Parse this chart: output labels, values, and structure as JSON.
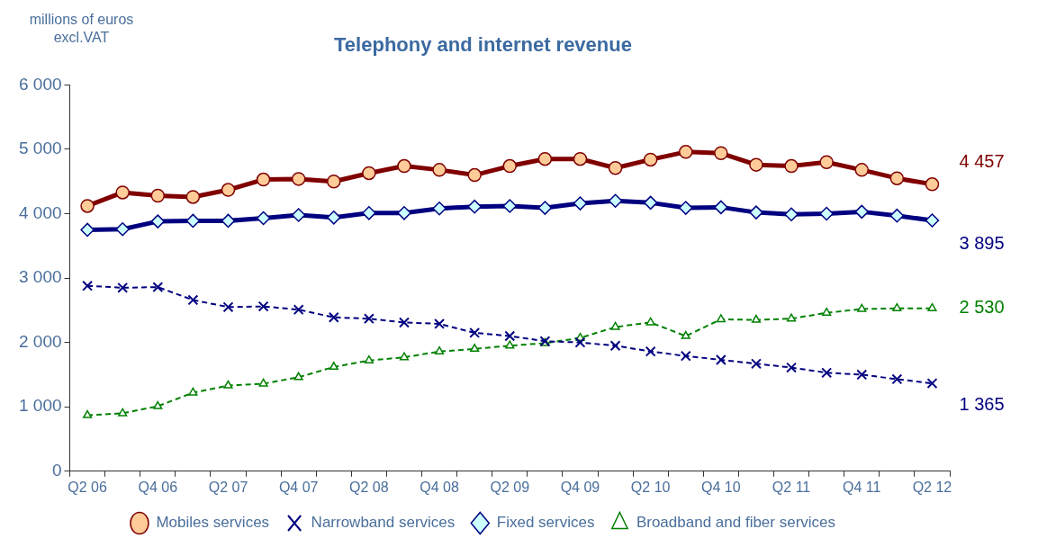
{
  "chart_data": {
    "type": "line",
    "title": "Telephony and internet revenue",
    "ylabel": "millions of euros excl.VAT",
    "categories": [
      "Q2 06",
      null,
      "Q4 06",
      null,
      "Q2 07",
      null,
      "Q4 07",
      null,
      "Q2 08",
      null,
      "Q4 08",
      null,
      "Q2 09",
      null,
      "Q4 09",
      null,
      "Q2 10",
      null,
      "Q4 10",
      null,
      "Q2 11",
      null,
      "Q4 11",
      null,
      "Q2 12"
    ],
    "series": [
      {
        "name": "Mobiles services",
        "color": "#800000",
        "marker": "circle",
        "line_style": "solid",
        "values": [
          4120,
          4330,
          4280,
          4260,
          4370,
          4530,
          4540,
          4500,
          4630,
          4740,
          4680,
          4600,
          4740,
          4850,
          4850,
          4710,
          4840,
          4960,
          4940,
          4760,
          4740,
          4800,
          4680,
          4550,
          4457
        ],
        "value_labels": [
          null,
          null,
          null,
          null,
          null,
          null,
          null,
          null,
          null,
          null,
          null,
          null,
          null,
          null,
          null,
          null,
          null,
          null,
          null,
          null,
          null,
          null,
          null,
          null,
          "4 457"
        ]
      },
      {
        "name": "Narrowband services",
        "color": "#000080",
        "marker": "cross",
        "line_style": "dashed",
        "values": [
          2880,
          2850,
          2860,
          2660,
          2550,
          2560,
          2510,
          2390,
          2370,
          2310,
          2290,
          2150,
          2100,
          2020,
          2000,
          1950,
          1860,
          1790,
          1730,
          1670,
          1610,
          1530,
          1500,
          1430,
          1365
        ],
        "value_labels": [
          null,
          null,
          null,
          null,
          null,
          null,
          null,
          null,
          null,
          null,
          null,
          null,
          null,
          null,
          null,
          null,
          null,
          null,
          null,
          null,
          null,
          null,
          null,
          null,
          "1 365"
        ]
      },
      {
        "name": "Fixed services",
        "color": "#000080",
        "marker": "diamond",
        "line_style": "solid",
        "values": [
          3750,
          3760,
          3880,
          3890,
          3890,
          3930,
          3980,
          3940,
          4010,
          4010,
          4080,
          4110,
          4120,
          4090,
          4160,
          4200,
          4170,
          4090,
          4100,
          4020,
          3990,
          4000,
          4030,
          3970,
          3895
        ],
        "value_labels": [
          null,
          null,
          null,
          null,
          null,
          null,
          null,
          null,
          null,
          null,
          null,
          null,
          null,
          null,
          null,
          null,
          null,
          null,
          null,
          null,
          null,
          null,
          null,
          null,
          "3 895"
        ]
      },
      {
        "name": "Broadband and fiber services",
        "color": "#008000",
        "marker": "triangle",
        "line_style": "dashed",
        "values": [
          870,
          900,
          1010,
          1220,
          1330,
          1360,
          1460,
          1620,
          1720,
          1770,
          1860,
          1900,
          1950,
          1990,
          2070,
          2240,
          2310,
          2100,
          2360,
          2350,
          2370,
          2460,
          2520,
          2530,
          2530
        ],
        "value_labels": [
          null,
          null,
          null,
          null,
          null,
          null,
          null,
          null,
          null,
          null,
          null,
          null,
          null,
          null,
          null,
          null,
          null,
          null,
          null,
          null,
          null,
          null,
          null,
          null,
          "2 530"
        ]
      }
    ],
    "ylim": [
      0,
      6000
    ],
    "yticks": [
      {
        "value": 0,
        "label": "0"
      },
      {
        "value": 1000,
        "label": "1 000"
      },
      {
        "value": 2000,
        "label": "2 000"
      },
      {
        "value": 3000,
        "label": "3 000"
      },
      {
        "value": 4000,
        "label": "4 000"
      },
      {
        "value": 5000,
        "label": "5 000"
      },
      {
        "value": 6000,
        "label": "6 000"
      }
    ],
    "grid": false,
    "legend": "bottom"
  }
}
